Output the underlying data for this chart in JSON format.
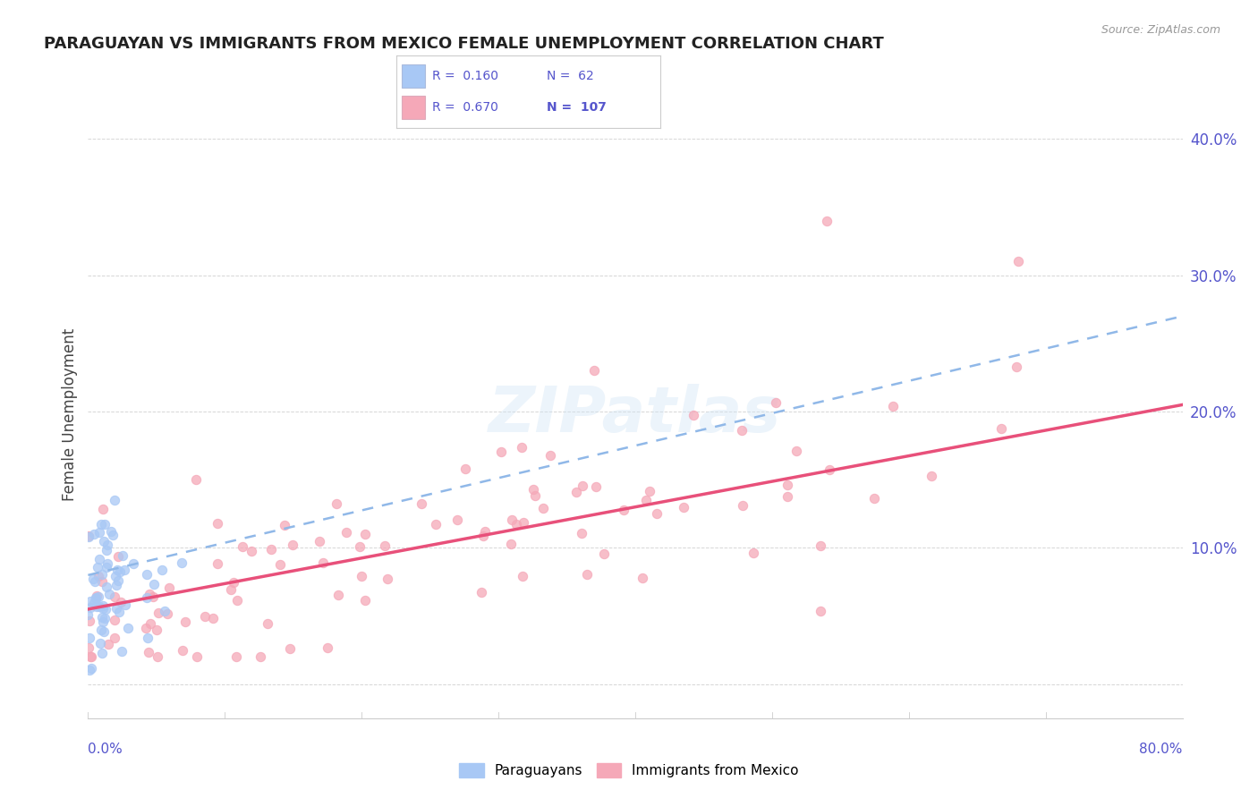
{
  "title": "PARAGUAYAN VS IMMIGRANTS FROM MEXICO FEMALE UNEMPLOYMENT CORRELATION CHART",
  "source": "Source: ZipAtlas.com",
  "ylabel": "Female Unemployment",
  "legend_blue_R": "0.160",
  "legend_blue_N": "62",
  "legend_pink_R": "0.670",
  "legend_pink_N": "107",
  "blue_color": "#a8c8f5",
  "pink_color": "#f5a8b8",
  "blue_line_color": "#90b8e8",
  "pink_line_color": "#e8507a",
  "xlim": [
    0.0,
    0.8
  ],
  "ylim": [
    -0.025,
    0.42
  ],
  "y_ticks": [
    0.0,
    0.1,
    0.2,
    0.3,
    0.4
  ],
  "y_labels": [
    "",
    "10.0%",
    "20.0%",
    "30.0%",
    "40.0%"
  ],
  "watermark_text": "ZIPatlas",
  "label_color": "#5555cc",
  "grid_color": "#cccccc"
}
